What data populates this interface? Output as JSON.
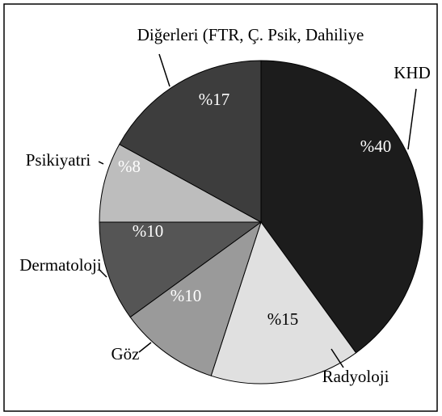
{
  "chart_data": {
    "type": "pie",
    "categories": [
      "KHD",
      "Radyoloji",
      "Göz",
      "Dermatoloji",
      "Psikiyatri",
      "Diğerleri (FTR, Ç. Psik, Dahiliye"
    ],
    "values": [
      40,
      15,
      10,
      10,
      8,
      17
    ],
    "value_labels": [
      "%40",
      "%15",
      "%10",
      "%10",
      "%8",
      "%17"
    ],
    "colors": [
      "#1c1c1c",
      "#e0e0e0",
      "#9a9a9a",
      "#555555",
      "#bdbdbd",
      "#3d3d3d"
    ]
  }
}
